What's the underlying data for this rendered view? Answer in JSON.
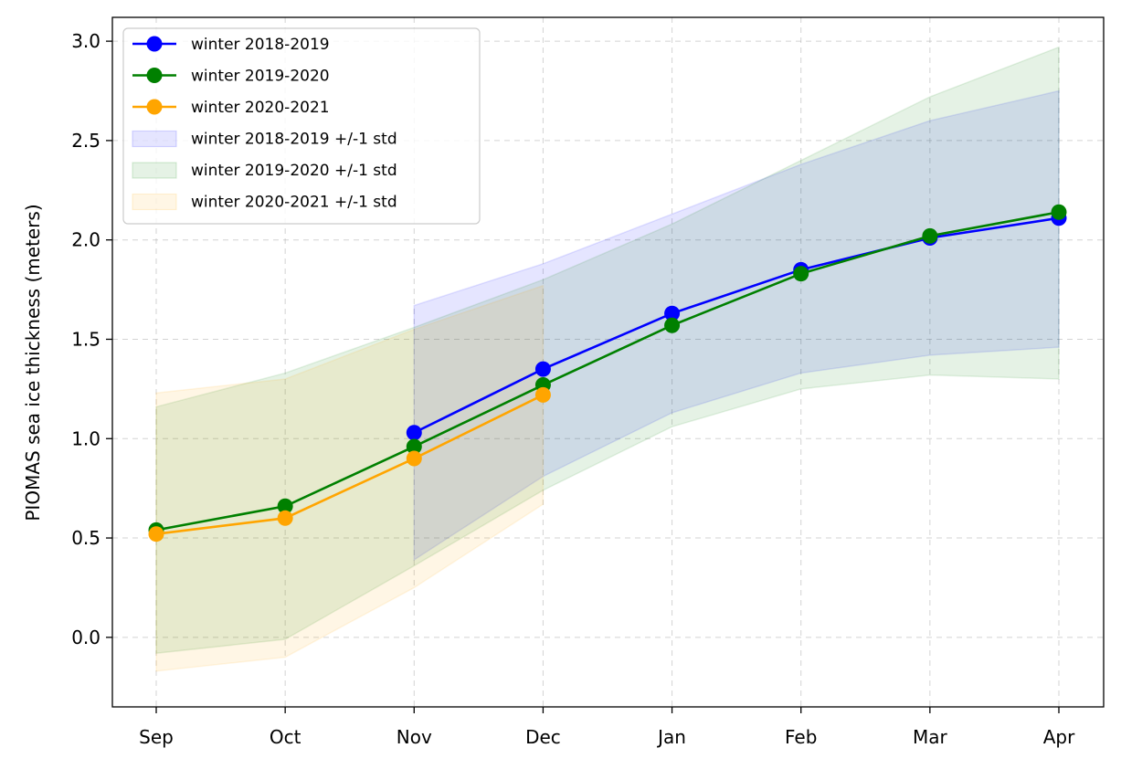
{
  "chart_data": {
    "type": "line",
    "categories": [
      "Sep",
      "Oct",
      "Nov",
      "Dec",
      "Jan",
      "Feb",
      "Mar",
      "Apr"
    ],
    "ylabel": "PIOMAS sea ice thickness (meters)",
    "xlabel": "",
    "ylim": [
      -0.35,
      3.12
    ],
    "yticks": [
      "0.0",
      "0.5",
      "1.0",
      "1.5",
      "2.0",
      "2.5",
      "3.0"
    ],
    "grid": true,
    "legend_position": "upper-left",
    "series": [
      {
        "name": "winter 2018-2019",
        "color": "#0000ff",
        "values": [
          null,
          null,
          1.03,
          1.35,
          1.63,
          1.85,
          2.01,
          2.11
        ],
        "std_label": "winter 2018-2019 +/-1 std",
        "upper": [
          null,
          null,
          1.67,
          1.88,
          2.13,
          2.38,
          2.6,
          2.75
        ],
        "lower": [
          null,
          null,
          0.39,
          0.81,
          1.13,
          1.33,
          1.42,
          1.46
        ]
      },
      {
        "name": "winter 2019-2020",
        "color": "#008000",
        "values": [
          0.54,
          0.66,
          0.96,
          1.27,
          1.57,
          1.83,
          2.02,
          2.14
        ],
        "std_label": "winter 2019-2020 +/-1 std",
        "upper": [
          1.16,
          1.33,
          1.56,
          1.8,
          2.08,
          2.4,
          2.72,
          2.97
        ],
        "lower": [
          -0.08,
          -0.01,
          0.36,
          0.74,
          1.06,
          1.25,
          1.32,
          1.3
        ]
      },
      {
        "name": "winter 2020-2021",
        "color": "#ffa500",
        "values": [
          0.52,
          0.6,
          0.9,
          1.22,
          null,
          null,
          null,
          null
        ],
        "std_label": "winter 2020-2021 +/-1 std",
        "upper": [
          1.23,
          1.3,
          1.55,
          1.77,
          null,
          null,
          null,
          null
        ],
        "lower": [
          -0.17,
          -0.1,
          0.25,
          0.67,
          null,
          null,
          null,
          null
        ]
      }
    ]
  }
}
